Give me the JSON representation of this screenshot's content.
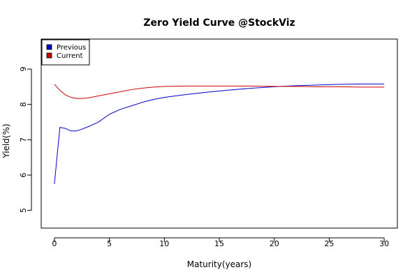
{
  "chart_data": {
    "type": "line",
    "title": "Zero Yield Curve @StockViz",
    "xlabel": "Maturity(years)",
    "ylabel": "Yield(%)",
    "xlim": [
      -1.2,
      31.2
    ],
    "ylim": [
      4.5,
      9.85
    ],
    "xticks": [
      0,
      5,
      10,
      15,
      20,
      25,
      30
    ],
    "yticks": [
      5,
      6,
      7,
      8,
      9
    ],
    "grid": false,
    "legend": "top-left",
    "series": [
      {
        "name": "Previous",
        "color": "#0000cc",
        "x": [
          0,
          0.5,
          1,
          1.5,
          2,
          2.5,
          3,
          4,
          5,
          6,
          7,
          8,
          9,
          10,
          12,
          14,
          16,
          18,
          20,
          22,
          24,
          26,
          28,
          30
        ],
        "y": [
          5.75,
          7.35,
          7.32,
          7.25,
          7.25,
          7.3,
          7.36,
          7.5,
          7.72,
          7.86,
          7.96,
          8.06,
          8.14,
          8.2,
          8.28,
          8.35,
          8.41,
          8.46,
          8.5,
          8.53,
          8.55,
          8.57,
          8.58,
          8.58
        ]
      },
      {
        "name": "Current",
        "color": "#cc0000",
        "x": [
          0,
          0.5,
          1,
          1.5,
          2,
          2.5,
          3,
          4,
          5,
          6,
          7,
          8,
          9,
          10,
          12,
          14,
          16,
          18,
          20,
          22,
          24,
          26,
          28,
          30
        ],
        "y": [
          8.57,
          8.4,
          8.27,
          8.2,
          8.17,
          8.17,
          8.18,
          8.24,
          8.3,
          8.36,
          8.42,
          8.46,
          8.49,
          8.51,
          8.52,
          8.52,
          8.52,
          8.52,
          8.51,
          8.51,
          8.5,
          8.5,
          8.49,
          8.49
        ]
      }
    ]
  }
}
